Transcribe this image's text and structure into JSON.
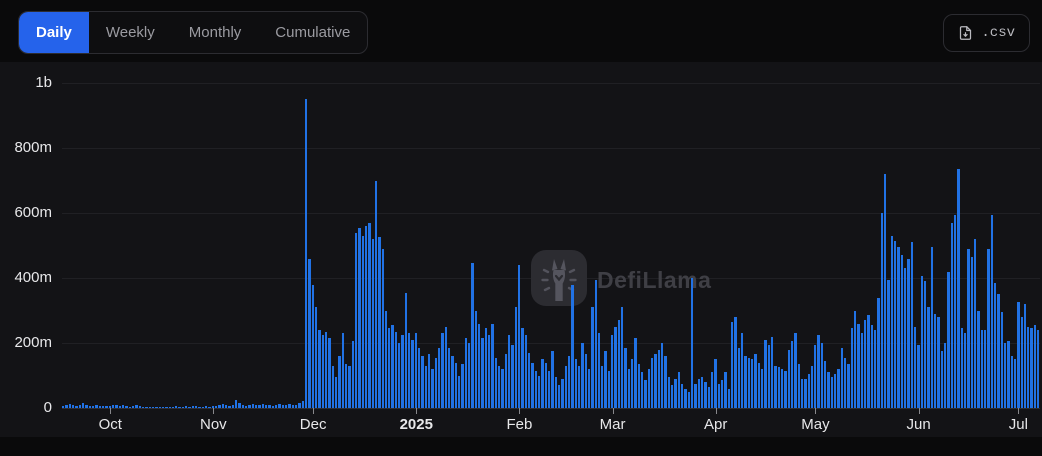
{
  "header": {
    "tabs": [
      {
        "label": "Daily",
        "active": true
      },
      {
        "label": "Weekly",
        "active": false
      },
      {
        "label": "Monthly",
        "active": false
      },
      {
        "label": "Cumulative",
        "active": false
      }
    ],
    "export_button": {
      "label": ".csv",
      "icon": "file-download-icon"
    }
  },
  "watermark": {
    "text": "DefiLlama",
    "icon": "llama-logo"
  },
  "colors": {
    "background": "#0a0a0b",
    "panel": "#131316",
    "bar": "#2172E5",
    "active_tab": "#2563eb",
    "grid": "#202024",
    "axis_text": "#e8e8ea",
    "muted_text": "#9b9ba1"
  },
  "chart_data": {
    "type": "bar",
    "title": "",
    "selected_interval": "Daily",
    "grid": true,
    "legend_position": "none",
    "value_scale": "millions",
    "ylim": [
      0,
      1000
    ],
    "y_ticks": [
      {
        "label": "0",
        "value": 0
      },
      {
        "label": "200m",
        "value": 200
      },
      {
        "label": "400m",
        "value": 400
      },
      {
        "label": "600m",
        "value": 600
      },
      {
        "label": "800m",
        "value": 800
      },
      {
        "label": "1b",
        "value": 1000
      }
    ],
    "x_ticks": [
      {
        "label": "Oct",
        "index": 14,
        "bold": false
      },
      {
        "label": "Nov",
        "index": 45,
        "bold": false
      },
      {
        "label": "Dec",
        "index": 75,
        "bold": false
      },
      {
        "label": "2025",
        "index": 106,
        "bold": true
      },
      {
        "label": "Feb",
        "index": 137,
        "bold": false
      },
      {
        "label": "Mar",
        "index": 165,
        "bold": false
      },
      {
        "label": "Apr",
        "index": 196,
        "bold": false
      },
      {
        "label": "May",
        "index": 226,
        "bold": false
      },
      {
        "label": "Jun",
        "index": 257,
        "bold": false
      },
      {
        "label": "Jul",
        "index": 287,
        "bold": false
      }
    ],
    "values_in_millions": [
      5,
      8,
      12,
      9,
      6,
      10,
      14,
      8,
      6,
      5,
      9,
      7,
      5,
      6,
      7,
      10,
      8,
      6,
      9,
      5,
      4,
      6,
      8,
      5,
      4,
      3,
      2,
      3,
      4,
      3,
      2,
      2,
      3,
      4,
      6,
      4,
      3,
      5,
      4,
      6,
      5,
      4,
      3,
      5,
      4,
      5,
      7,
      10,
      13,
      8,
      6,
      10,
      25,
      14,
      9,
      7,
      8,
      11,
      9,
      8,
      12,
      10,
      8,
      7,
      9,
      11,
      10,
      9,
      13,
      10,
      9,
      15,
      22,
      950,
      460,
      380,
      310,
      240,
      225,
      235,
      215,
      130,
      95,
      160,
      230,
      135,
      130,
      205,
      540,
      555,
      530,
      560,
      570,
      520,
      700,
      525,
      490,
      300,
      245,
      255,
      235,
      200,
      225,
      355,
      230,
      210,
      230,
      185,
      160,
      130,
      165,
      120,
      155,
      185,
      230,
      250,
      185,
      160,
      140,
      100,
      135,
      215,
      200,
      445,
      300,
      260,
      215,
      245,
      225,
      260,
      155,
      130,
      120,
      165,
      225,
      195,
      310,
      440,
      245,
      225,
      170,
      140,
      115,
      100,
      150,
      140,
      115,
      175,
      95,
      70,
      90,
      130,
      160,
      380,
      150,
      130,
      200,
      165,
      120,
      310,
      395,
      230,
      130,
      175,
      115,
      225,
      250,
      270,
      310,
      185,
      120,
      150,
      215,
      135,
      110,
      85,
      120,
      155,
      165,
      180,
      200,
      160,
      95,
      70,
      90,
      110,
      75,
      60,
      50,
      400,
      75,
      90,
      95,
      80,
      65,
      110,
      150,
      75,
      85,
      110,
      60,
      265,
      280,
      185,
      230,
      160,
      155,
      150,
      165,
      140,
      120,
      210,
      195,
      220,
      130,
      125,
      120,
      115,
      180,
      205,
      230,
      135,
      90,
      90,
      105,
      130,
      195,
      225,
      200,
      145,
      110,
      95,
      105,
      120,
      185,
      155,
      135,
      245,
      300,
      260,
      230,
      270,
      285,
      255,
      240,
      340,
      600,
      720,
      395,
      530,
      515,
      495,
      470,
      430,
      460,
      510,
      250,
      195,
      405,
      390,
      310,
      495,
      290,
      280,
      175,
      200,
      420,
      570,
      595,
      735,
      245,
      230,
      490,
      465,
      520,
      300,
      240,
      240,
      490,
      595,
      385,
      350,
      295,
      200,
      205,
      160,
      150,
      325,
      280,
      320,
      250,
      245,
      255,
      240
    ]
  }
}
